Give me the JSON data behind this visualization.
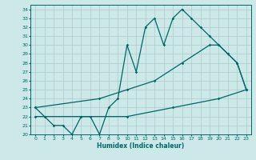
{
  "xlabel": "Humidex (Indice chaleur)",
  "bg_color": "#cce8e8",
  "line_color": "#006666",
  "grid_color": "#aacccc",
  "xlim": [
    -0.5,
    23.5
  ],
  "ylim": [
    20,
    34.5
  ],
  "xticks": [
    0,
    1,
    2,
    3,
    4,
    5,
    6,
    7,
    8,
    9,
    10,
    11,
    12,
    13,
    14,
    15,
    16,
    17,
    18,
    19,
    20,
    21,
    22,
    23
  ],
  "yticks": [
    20,
    21,
    22,
    23,
    24,
    25,
    26,
    27,
    28,
    29,
    30,
    31,
    32,
    33,
    34
  ],
  "line1_x": [
    0,
    1,
    2,
    3,
    4,
    5,
    6,
    7,
    8,
    9,
    10,
    11,
    12,
    13,
    14,
    15,
    16,
    17,
    18,
    19,
    20,
    21,
    22,
    23
  ],
  "line1_y": [
    23,
    22,
    21,
    21,
    20,
    22,
    22,
    20,
    23,
    24,
    30,
    27,
    32,
    33,
    30,
    33,
    34,
    33,
    32,
    31,
    30,
    29,
    28,
    25
  ],
  "line2_x": [
    0,
    7,
    10,
    13,
    16,
    19,
    20,
    21,
    22,
    23
  ],
  "line2_y": [
    23,
    24,
    25,
    26,
    28,
    30,
    30,
    29,
    28,
    25
  ],
  "line3_x": [
    0,
    5,
    10,
    15,
    20,
    23
  ],
  "line3_y": [
    22,
    22,
    22,
    23,
    24,
    25
  ]
}
